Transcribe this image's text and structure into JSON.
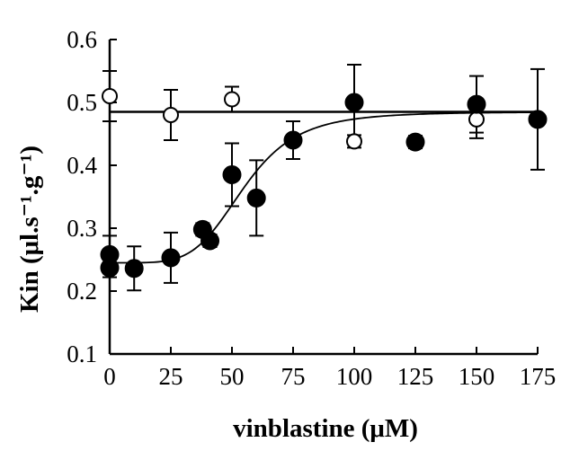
{
  "chart_data": {
    "type": "scatter",
    "title": "",
    "xlabel": "vinblastine (μM)",
    "ylabel": "Kin (μl.s⁻¹.g⁻¹)",
    "xlim": [
      0,
      175
    ],
    "ylim": [
      0.1,
      0.6
    ],
    "x_ticks": [
      0,
      25,
      50,
      75,
      100,
      125,
      150,
      175
    ],
    "y_ticks": [
      0.1,
      0.2,
      0.3,
      0.4,
      0.5,
      0.6
    ],
    "x_tick_labels": [
      "0",
      "25",
      "50",
      "75",
      "100",
      "125",
      "150",
      "175"
    ],
    "y_tick_labels": [
      "0.1",
      "0.2",
      "0.3",
      "0.4",
      "0.5",
      "0.6"
    ],
    "grid": false,
    "legend": "none",
    "series": [
      {
        "marker": "open-circle",
        "points": [
          {
            "x": 0,
            "y": 0.51,
            "err": 0.04
          },
          {
            "x": 25,
            "y": 0.48,
            "err": 0.04
          },
          {
            "x": 50,
            "y": 0.505,
            "err": 0.02
          },
          {
            "x": 100,
            "y": 0.438,
            "err": 0.01
          },
          {
            "x": 150,
            "y": 0.473,
            "err": 0.03
          }
        ],
        "fit": {
          "type": "horizontal",
          "y": 0.485
        }
      },
      {
        "marker": "filled-circle",
        "points": [
          {
            "x": 0,
            "y": 0.258,
            "err": 0.03
          },
          {
            "x": 0,
            "y": 0.237,
            "err": 0.015
          },
          {
            "x": 10,
            "y": 0.236,
            "err": 0.035
          },
          {
            "x": 25,
            "y": 0.253,
            "err": 0.04
          },
          {
            "x": 38,
            "y": 0.298,
            "err": 0.01
          },
          {
            "x": 41,
            "y": 0.28,
            "err": 0.01
          },
          {
            "x": 50,
            "y": 0.385,
            "err": 0.05
          },
          {
            "x": 60,
            "y": 0.348,
            "err": 0.06
          },
          {
            "x": 75,
            "y": 0.44,
            "err": 0.03
          },
          {
            "x": 100,
            "y": 0.5,
            "err": 0.06
          },
          {
            "x": 125,
            "y": 0.437,
            "err": 0.01
          },
          {
            "x": 150,
            "y": 0.497,
            "err": 0.045
          },
          {
            "x": 175,
            "y": 0.473,
            "err": 0.08
          }
        ],
        "fit": {
          "type": "sigmoid",
          "bottom": 0.245,
          "top": 0.485,
          "ec50": 55,
          "hill": 5
        }
      }
    ]
  }
}
